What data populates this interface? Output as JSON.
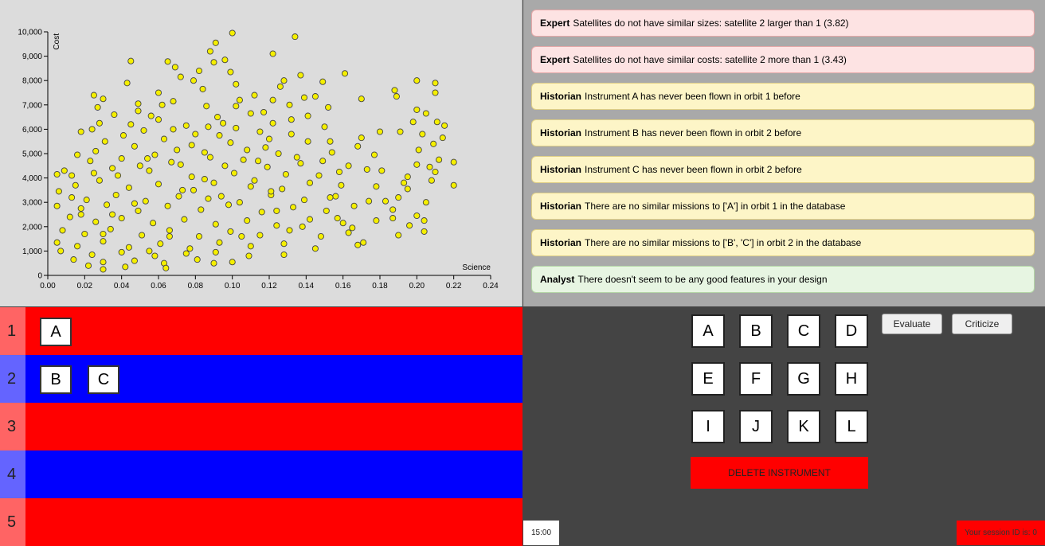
{
  "chart_data": {
    "type": "scatter",
    "xlabel": "Science",
    "ylabel": "Cost",
    "xlim": [
      0,
      0.24
    ],
    "ylim": [
      0,
      10000
    ],
    "x_ticks": [
      "0.00",
      "0.02",
      "0.04",
      "0.06",
      "0.08",
      "0.10",
      "0.12",
      "0.14",
      "0.16",
      "0.18",
      "0.20",
      "0.22",
      "0.24"
    ],
    "y_ticks": [
      "0",
      "1,000",
      "2,000",
      "3,000",
      "4,000",
      "5,000",
      "6,000",
      "7,000",
      "8,000",
      "9,000",
      "10,000"
    ],
    "point_color": "#f5ef00",
    "point_outline": "#444444",
    "points": [
      [
        0.1,
        9950
      ],
      [
        0.134,
        9800
      ],
      [
        0.091,
        9550
      ],
      [
        0.122,
        9100
      ],
      [
        0.045,
        8800
      ],
      [
        0.065,
        8780
      ],
      [
        0.09,
        8750
      ],
      [
        0.069,
        8550
      ],
      [
        0.099,
        8350
      ],
      [
        0.161,
        8290
      ],
      [
        0.137,
        8220
      ],
      [
        0.043,
        7900
      ],
      [
        0.079,
        8000
      ],
      [
        0.102,
        7850
      ],
      [
        0.126,
        7750
      ],
      [
        0.149,
        7950
      ],
      [
        0.2,
        8000
      ],
      [
        0.21,
        7900
      ],
      [
        0.188,
        7600
      ],
      [
        0.06,
        7500
      ],
      [
        0.03,
        7250
      ],
      [
        0.112,
        7400
      ],
      [
        0.139,
        7300
      ],
      [
        0.17,
        7250
      ],
      [
        0.025,
        7400
      ],
      [
        0.049,
        7050
      ],
      [
        0.068,
        7150
      ],
      [
        0.086,
        6950
      ],
      [
        0.131,
        7000
      ],
      [
        0.2,
        6800
      ],
      [
        0.21,
        7500
      ],
      [
        0.027,
        6900
      ],
      [
        0.152,
        6900
      ],
      [
        0.189,
        7350
      ],
      [
        0.036,
        6600
      ],
      [
        0.06,
        6400
      ],
      [
        0.092,
        6500
      ],
      [
        0.117,
        6700
      ],
      [
        0.141,
        6550
      ],
      [
        0.205,
        6650
      ],
      [
        0.211,
        6300
      ],
      [
        0.028,
        6250
      ],
      [
        0.045,
        6200
      ],
      [
        0.075,
        6150
      ],
      [
        0.102,
        6050
      ],
      [
        0.122,
        6250
      ],
      [
        0.15,
        6100
      ],
      [
        0.18,
        5900
      ],
      [
        0.198,
        6300
      ],
      [
        0.215,
        6150
      ],
      [
        0.052,
        5950
      ],
      [
        0.08,
        5800
      ],
      [
        0.093,
        5750
      ],
      [
        0.115,
        5900
      ],
      [
        0.132,
        5800
      ],
      [
        0.17,
        5650
      ],
      [
        0.191,
        5900
      ],
      [
        0.203,
        5800
      ],
      [
        0.031,
        5500
      ],
      [
        0.063,
        5600
      ],
      [
        0.099,
        5450
      ],
      [
        0.12,
        5600
      ],
      [
        0.141,
        5500
      ],
      [
        0.209,
        5400
      ],
      [
        0.026,
        5100
      ],
      [
        0.047,
        5300
      ],
      [
        0.07,
        5150
      ],
      [
        0.085,
        5050
      ],
      [
        0.108,
        5150
      ],
      [
        0.125,
        5000
      ],
      [
        0.154,
        5050
      ],
      [
        0.168,
        5300
      ],
      [
        0.201,
        5150
      ],
      [
        0.04,
        4800
      ],
      [
        0.058,
        4950
      ],
      [
        0.088,
        4850
      ],
      [
        0.114,
        4700
      ],
      [
        0.135,
        4850
      ],
      [
        0.149,
        4700
      ],
      [
        0.177,
        4950
      ],
      [
        0.212,
        4750
      ],
      [
        0.22,
        4650
      ],
      [
        0.016,
        4950
      ],
      [
        0.023,
        4700
      ],
      [
        0.05,
        4500
      ],
      [
        0.067,
        4650
      ],
      [
        0.096,
        4500
      ],
      [
        0.119,
        4450
      ],
      [
        0.137,
        4600
      ],
      [
        0.163,
        4500
      ],
      [
        0.2,
        4550
      ],
      [
        0.005,
        4150
      ],
      [
        0.009,
        4300
      ],
      [
        0.025,
        4200
      ],
      [
        0.038,
        4100
      ],
      [
        0.055,
        4300
      ],
      [
        0.078,
        4050
      ],
      [
        0.101,
        4200
      ],
      [
        0.129,
        4150
      ],
      [
        0.158,
        4250
      ],
      [
        0.181,
        4300
      ],
      [
        0.195,
        4050
      ],
      [
        0.21,
        4250
      ],
      [
        0.006,
        3450
      ],
      [
        0.015,
        3700
      ],
      [
        0.028,
        3900
      ],
      [
        0.044,
        3600
      ],
      [
        0.06,
        3750
      ],
      [
        0.073,
        3500
      ],
      [
        0.09,
        3800
      ],
      [
        0.11,
        3650
      ],
      [
        0.127,
        3550
      ],
      [
        0.142,
        3800
      ],
      [
        0.159,
        3700
      ],
      [
        0.178,
        3650
      ],
      [
        0.193,
        3800
      ],
      [
        0.208,
        3900
      ],
      [
        0.22,
        3700
      ],
      [
        0.013,
        3200
      ],
      [
        0.021,
        3100
      ],
      [
        0.037,
        3300
      ],
      [
        0.053,
        3050
      ],
      [
        0.071,
        3250
      ],
      [
        0.087,
        3150
      ],
      [
        0.104,
        3000
      ],
      [
        0.121,
        3300
      ],
      [
        0.139,
        3100
      ],
      [
        0.156,
        3250
      ],
      [
        0.174,
        3050
      ],
      [
        0.19,
        3200
      ],
      [
        0.205,
        3000
      ],
      [
        0.005,
        2850
      ],
      [
        0.018,
        2750
      ],
      [
        0.032,
        2900
      ],
      [
        0.049,
        2650
      ],
      [
        0.065,
        2850
      ],
      [
        0.083,
        2700
      ],
      [
        0.098,
        2900
      ],
      [
        0.116,
        2600
      ],
      [
        0.133,
        2800
      ],
      [
        0.151,
        2650
      ],
      [
        0.166,
        2850
      ],
      [
        0.187,
        2700
      ],
      [
        0.2,
        2450
      ],
      [
        0.012,
        2400
      ],
      [
        0.026,
        2200
      ],
      [
        0.04,
        2350
      ],
      [
        0.057,
        2150
      ],
      [
        0.074,
        2300
      ],
      [
        0.091,
        2100
      ],
      [
        0.108,
        2250
      ],
      [
        0.124,
        2050
      ],
      [
        0.142,
        2300
      ],
      [
        0.16,
        2150
      ],
      [
        0.178,
        2250
      ],
      [
        0.196,
        2050
      ],
      [
        0.204,
        2250
      ],
      [
        0.008,
        1850
      ],
      [
        0.02,
        1700
      ],
      [
        0.034,
        1900
      ],
      [
        0.051,
        1650
      ],
      [
        0.066,
        1850
      ],
      [
        0.082,
        1600
      ],
      [
        0.099,
        1800
      ],
      [
        0.115,
        1650
      ],
      [
        0.131,
        1850
      ],
      [
        0.148,
        1600
      ],
      [
        0.163,
        1750
      ],
      [
        0.19,
        1650
      ],
      [
        0.204,
        1800
      ],
      [
        0.005,
        1350
      ],
      [
        0.016,
        1200
      ],
      [
        0.03,
        1400
      ],
      [
        0.044,
        1150
      ],
      [
        0.061,
        1300
      ],
      [
        0.077,
        1100
      ],
      [
        0.093,
        1350
      ],
      [
        0.11,
        1200
      ],
      [
        0.128,
        1300
      ],
      [
        0.145,
        1100
      ],
      [
        0.168,
        1250
      ],
      [
        0.007,
        1000
      ],
      [
        0.024,
        850
      ],
      [
        0.04,
        950
      ],
      [
        0.058,
        800
      ],
      [
        0.075,
        900
      ],
      [
        0.091,
        950
      ],
      [
        0.109,
        800
      ],
      [
        0.128,
        850
      ],
      [
        0.014,
        650
      ],
      [
        0.03,
        550
      ],
      [
        0.047,
        600
      ],
      [
        0.063,
        500
      ],
      [
        0.081,
        650
      ],
      [
        0.1,
        550
      ],
      [
        0.022,
        400
      ],
      [
        0.042,
        350
      ],
      [
        0.064,
        300
      ],
      [
        0.03,
        250
      ],
      [
        0.09,
        500
      ],
      [
        0.035,
        2500
      ],
      [
        0.047,
        2950
      ],
      [
        0.079,
        3500
      ],
      [
        0.112,
        3900
      ],
      [
        0.147,
        4100
      ],
      [
        0.153,
        3200
      ],
      [
        0.118,
        5250
      ],
      [
        0.087,
        6100
      ],
      [
        0.062,
        7000
      ],
      [
        0.049,
        6750
      ],
      [
        0.072,
        8150
      ],
      [
        0.082,
        8400
      ],
      [
        0.096,
        8850
      ],
      [
        0.104,
        7200
      ],
      [
        0.128,
        8000
      ],
      [
        0.145,
        7350
      ],
      [
        0.153,
        5500
      ],
      [
        0.173,
        4350
      ],
      [
        0.183,
        3050
      ],
      [
        0.187,
        2350
      ],
      [
        0.195,
        3550
      ],
      [
        0.214,
        5650
      ],
      [
        0.207,
        4450
      ],
      [
        0.03,
        1700
      ],
      [
        0.055,
        1000
      ],
      [
        0.066,
        1600
      ],
      [
        0.105,
        1600
      ],
      [
        0.124,
        2650
      ],
      [
        0.138,
        2000
      ],
      [
        0.072,
        4550
      ],
      [
        0.094,
        3250
      ],
      [
        0.106,
        4750
      ],
      [
        0.041,
        5750
      ],
      [
        0.056,
        6550
      ],
      [
        0.078,
        5350
      ],
      [
        0.11,
        6650
      ],
      [
        0.132,
        6400
      ],
      [
        0.018,
        5900
      ],
      [
        0.024,
        6000
      ],
      [
        0.035,
        4400
      ],
      [
        0.013,
        4100
      ],
      [
        0.085,
        3950
      ],
      [
        0.121,
        3450
      ],
      [
        0.157,
        2350
      ],
      [
        0.165,
        1950
      ],
      [
        0.171,
        1350
      ],
      [
        0.018,
        2500
      ],
      [
        0.054,
        4800
      ],
      [
        0.068,
        6000
      ],
      [
        0.084,
        7650
      ],
      [
        0.102,
        6950
      ],
      [
        0.122,
        7200
      ],
      [
        0.088,
        9200
      ],
      [
        0.095,
        6250
      ]
    ]
  },
  "feedback": [
    {
      "who": "Expert",
      "text": "Satellites do not have similar sizes: satellite 2 larger than 1 (3.82)",
      "kind": "expert"
    },
    {
      "who": "Expert",
      "text": "Satellites do not have similar costs: satellite 2 more than 1 (3.43)",
      "kind": "expert"
    },
    {
      "who": "Historian",
      "text": "Instrument A has never been flown in orbit 1 before",
      "kind": "historian"
    },
    {
      "who": "Historian",
      "text": "Instrument B has never been flown in orbit 2 before",
      "kind": "historian"
    },
    {
      "who": "Historian",
      "text": "Instrument C has never been flown in orbit 2 before",
      "kind": "historian"
    },
    {
      "who": "Historian",
      "text": "There are no similar missions to ['A'] in orbit 1 in the database",
      "kind": "historian"
    },
    {
      "who": "Historian",
      "text": "There are no similar missions to ['B', 'C'] in orbit 2 in the database",
      "kind": "historian"
    },
    {
      "who": "Analyst",
      "text": "There doesn't seem to be any good features in your design",
      "kind": "analyst"
    }
  ],
  "orbits": [
    {
      "number": "1",
      "instruments": [
        "A"
      ],
      "color": "#ff0000",
      "label_color": "#ff6464"
    },
    {
      "number": "2",
      "instruments": [
        "B",
        "C"
      ],
      "color": "#0000ff",
      "label_color": "#6464ff"
    },
    {
      "number": "3",
      "instruments": [],
      "color": "#ff0000",
      "label_color": "#ff6464"
    },
    {
      "number": "4",
      "instruments": [],
      "color": "#0000ff",
      "label_color": "#6464ff"
    },
    {
      "number": "5",
      "instruments": [],
      "color": "#ff0000",
      "label_color": "#ff6464"
    }
  ],
  "instruments": [
    "A",
    "B",
    "C",
    "D",
    "E",
    "F",
    "G",
    "H",
    "I",
    "J",
    "K",
    "L"
  ],
  "controls": {
    "evaluate": "Evaluate",
    "criticize": "Criticize",
    "delete": "DELETE INSTRUMENT"
  },
  "timer": "15:00",
  "session": "Your session ID is: 0"
}
